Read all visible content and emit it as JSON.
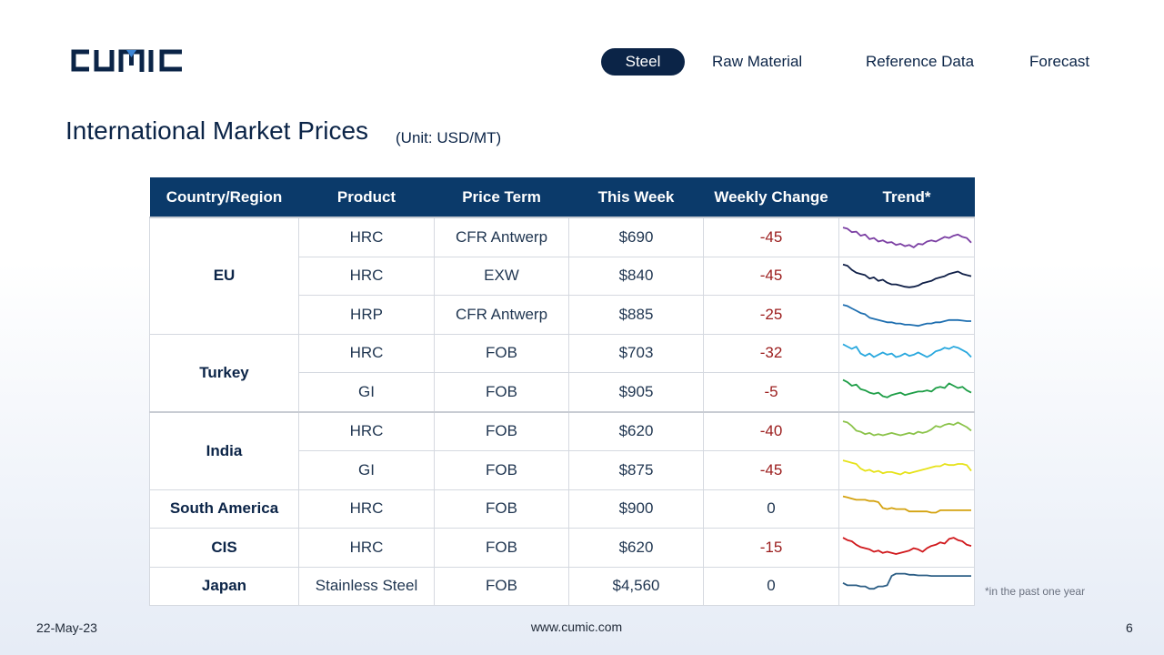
{
  "brand": {
    "logo_text": "CUMIC",
    "color": "#0b2447"
  },
  "nav": {
    "items": [
      {
        "label": "Steel",
        "active": true
      },
      {
        "label": "Raw Material",
        "active": false
      },
      {
        "label": "Reference Data",
        "active": false
      },
      {
        "label": "Forecast",
        "active": false
      }
    ]
  },
  "page": {
    "title": "International Market Prices",
    "unit": "(Unit: USD/MT)"
  },
  "table": {
    "headers": [
      "Country/Region",
      "Product",
      "Price Term",
      "This Week",
      "Weekly Change",
      "Trend*"
    ],
    "header_color": "#0b3a6a",
    "rows": [
      {
        "region": "EU",
        "product": "HRC",
        "term": "CFR Antwerp",
        "price": "$690",
        "change": "-45",
        "trend_color": "#7b3fa3",
        "trend": [
          62,
          60,
          54,
          55,
          48,
          50,
          42,
          44,
          38,
          40,
          36,
          37,
          32,
          34,
          30,
          32,
          28,
          34,
          33,
          38,
          40,
          38,
          42,
          46,
          44,
          48,
          50,
          46,
          44,
          36
        ]
      },
      {
        "region": "EU",
        "product": "HRC",
        "term": "EXW",
        "price": "$840",
        "change": "-45",
        "trend_color": "#0f1f47",
        "trend": [
          64,
          62,
          55,
          50,
          48,
          46,
          40,
          42,
          36,
          38,
          33,
          30,
          30,
          28,
          26,
          25,
          26,
          28,
          32,
          34,
          36,
          40,
          42,
          44,
          48,
          50,
          52,
          48,
          46,
          44
        ]
      },
      {
        "region": "EU",
        "product": "HRP",
        "term": "CFR Antwerp",
        "price": "$885",
        "change": "-25",
        "trend_color": "#1f6fb0",
        "trend": [
          62,
          60,
          56,
          52,
          48,
          46,
          40,
          38,
          36,
          34,
          32,
          32,
          30,
          30,
          28,
          28,
          27,
          26,
          28,
          30,
          30,
          32,
          32,
          34,
          36,
          36,
          36,
          35,
          34,
          34
        ]
      },
      {
        "region": "Turkey",
        "product": "HRC",
        "term": "FOB",
        "price": "$703",
        "change": "-32",
        "trend_color": "#29a8de",
        "trend": [
          60,
          56,
          52,
          56,
          44,
          40,
          44,
          38,
          42,
          46,
          42,
          44,
          38,
          40,
          44,
          40,
          42,
          46,
          42,
          38,
          42,
          48,
          50,
          54,
          52,
          56,
          54,
          50,
          46,
          38
        ]
      },
      {
        "region": "Turkey",
        "product": "GI",
        "term": "FOB",
        "price": "$905",
        "change": "-5",
        "trend_color": "#1e9e47",
        "trend": [
          66,
          62,
          56,
          58,
          50,
          48,
          44,
          42,
          44,
          38,
          36,
          40,
          42,
          44,
          40,
          42,
          44,
          46,
          46,
          48,
          46,
          52,
          54,
          52,
          60,
          56,
          52,
          54,
          48,
          44
        ]
      },
      {
        "region": "India",
        "product": "HRC",
        "term": "FOB",
        "price": "$620",
        "change": "-40",
        "trend_color": "#8bc34a",
        "trend": [
          62,
          60,
          54,
          46,
          44,
          40,
          42,
          38,
          40,
          38,
          40,
          42,
          40,
          38,
          40,
          42,
          40,
          44,
          42,
          44,
          48,
          54,
          52,
          56,
          58,
          56,
          60,
          56,
          52,
          46
        ]
      },
      {
        "region": "India",
        "product": "GI",
        "term": "FOB",
        "price": "$875",
        "change": "-45",
        "trend_color": "#e6e21a",
        "trend": [
          62,
          60,
          58,
          56,
          48,
          44,
          46,
          42,
          44,
          40,
          42,
          42,
          40,
          38,
          42,
          40,
          42,
          44,
          46,
          48,
          50,
          52,
          52,
          56,
          54,
          54,
          56,
          56,
          54,
          44
        ]
      },
      {
        "region": "South America",
        "product": "HRC",
        "term": "FOB",
        "price": "$900",
        "change": "0",
        "trend_color": "#d4a20f",
        "trend": [
          66,
          64,
          62,
          60,
          60,
          60,
          58,
          58,
          56,
          46,
          44,
          46,
          44,
          44,
          44,
          40,
          40,
          40,
          40,
          40,
          38,
          38,
          42,
          42,
          42,
          42,
          42,
          42,
          42,
          42
        ]
      },
      {
        "region": "CIS",
        "product": "HRC",
        "term": "FOB",
        "price": "$620",
        "change": "-15",
        "trend_color": "#d0181c",
        "trend": [
          62,
          58,
          56,
          50,
          46,
          44,
          42,
          38,
          40,
          36,
          38,
          36,
          34,
          36,
          38,
          40,
          44,
          42,
          38,
          44,
          48,
          50,
          54,
          52,
          60,
          62,
          58,
          56,
          50,
          48
        ]
      },
      {
        "region": "Japan",
        "product": "Stainless Steel",
        "term": "FOB",
        "price": "$4,560",
        "change": "0",
        "trend_color": "#2c5e85",
        "trend": [
          50,
          46,
          46,
          46,
          44,
          44,
          40,
          40,
          44,
          44,
          46,
          62,
          66,
          66,
          66,
          64,
          64,
          63,
          63,
          63,
          62,
          62,
          62,
          62,
          62,
          62,
          62,
          62,
          62,
          62
        ]
      }
    ]
  },
  "footnote": "*in the past one year",
  "footer": {
    "date": "22-May-23",
    "site": "www.cumic.com",
    "page": "6"
  }
}
